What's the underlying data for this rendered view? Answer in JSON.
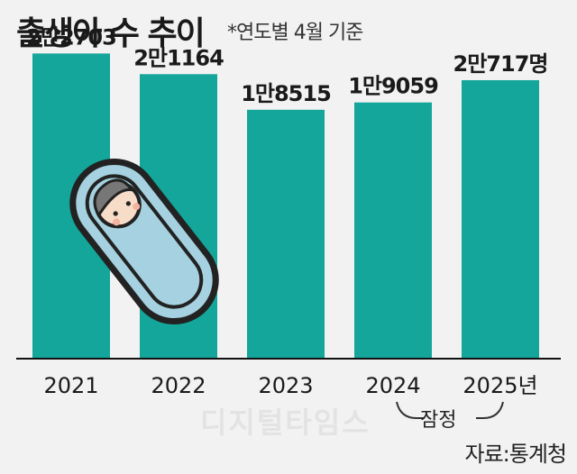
{
  "title": "출생아 수 추이",
  "subtitle": "*연도별 4월 기준",
  "source": "자료:통계청",
  "watermark": "디지털타임스",
  "provisional_note": "잠정",
  "colors": {
    "bar": "#14a69a",
    "text": "#1a1a1a",
    "axis": "#111111",
    "background": "#f2f2f2"
  },
  "chart_data": {
    "type": "bar",
    "categories": [
      "2021",
      "2022",
      "2023",
      "2024",
      "2025년"
    ],
    "values": [
      22703,
      21164,
      18515,
      19059,
      20717
    ],
    "value_labels": [
      "2만2703",
      "2만1164",
      "1만8515",
      "1만9059",
      "2만717명"
    ],
    "ylim": [
      0,
      24000
    ],
    "grid": false,
    "legend": "none",
    "annotation": {
      "text": "잠정",
      "applies_to": [
        "2024",
        "2025년"
      ]
    },
    "illustration": "swaddled-baby-icon"
  }
}
